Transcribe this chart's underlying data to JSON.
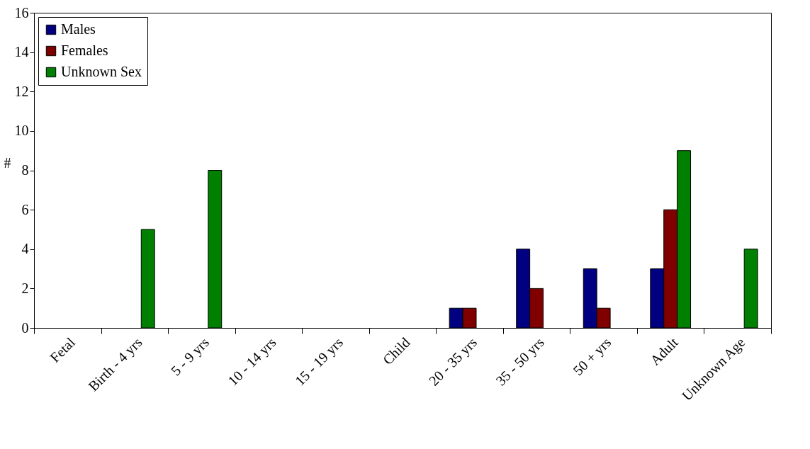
{
  "chart_data": {
    "type": "bar",
    "ylabel": "#",
    "categories": [
      "Fetal",
      "Birth - 4 yrs",
      "5 - 9 yrs",
      "10 - 14 yrs",
      "15 - 19 yrs",
      "Child",
      "20 - 35 yrs",
      "35 - 50 yrs",
      "50 + yrs",
      "Adult",
      "Unknown Age"
    ],
    "series": [
      {
        "name": "Males",
        "color": "#000080",
        "values": [
          null,
          null,
          null,
          null,
          null,
          null,
          1,
          4,
          3,
          3,
          null
        ]
      },
      {
        "name": "Females",
        "color": "#800000",
        "values": [
          null,
          null,
          null,
          null,
          null,
          null,
          1,
          2,
          1,
          6,
          null
        ]
      },
      {
        "name": "Unknown Sex",
        "color": "#008000",
        "values": [
          null,
          5,
          8,
          null,
          null,
          null,
          null,
          null,
          null,
          9,
          4
        ]
      }
    ],
    "ylim": [
      0,
      16
    ],
    "yticks": [
      0,
      2,
      4,
      6,
      8,
      10,
      12,
      14,
      16
    ],
    "grid": false,
    "legend": "top left"
  }
}
